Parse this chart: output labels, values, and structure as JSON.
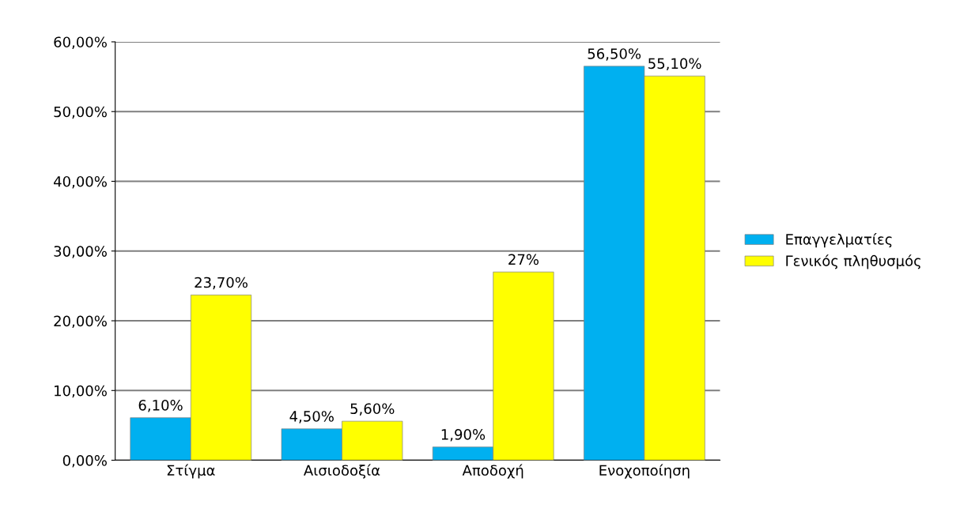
{
  "chart_data": {
    "type": "bar",
    "categories": [
      "Στίγμα",
      "Αισιοδοξία",
      "Αποδοχή",
      "Ενοχοποίηση"
    ],
    "series": [
      {
        "name": "Επαγγελματίες",
        "color": "#00b0f0",
        "values": [
          6.1,
          4.5,
          1.9,
          56.5
        ],
        "value_labels": [
          "6,10%",
          "4,50%",
          "1,90%",
          "56,50%"
        ]
      },
      {
        "name": "Γενικός πληθυσμός",
        "color": "#ffff00",
        "values": [
          23.7,
          5.6,
          27,
          55.1
        ],
        "value_labels": [
          "23,70%",
          "5,60%",
          "27%",
          "55,10%"
        ]
      }
    ],
    "ylim": [
      0,
      60
    ],
    "yticks": [
      {
        "value": 0,
        "label": "0,00%"
      },
      {
        "value": 10,
        "label": "10,00%"
      },
      {
        "value": 20,
        "label": "20,00%"
      },
      {
        "value": 30,
        "label": "30,00%"
      },
      {
        "value": 40,
        "label": "40,00%"
      },
      {
        "value": 50,
        "label": "50,00%"
      },
      {
        "value": 60,
        "label": "60,00%"
      }
    ],
    "grid": "y",
    "legend": "right"
  }
}
